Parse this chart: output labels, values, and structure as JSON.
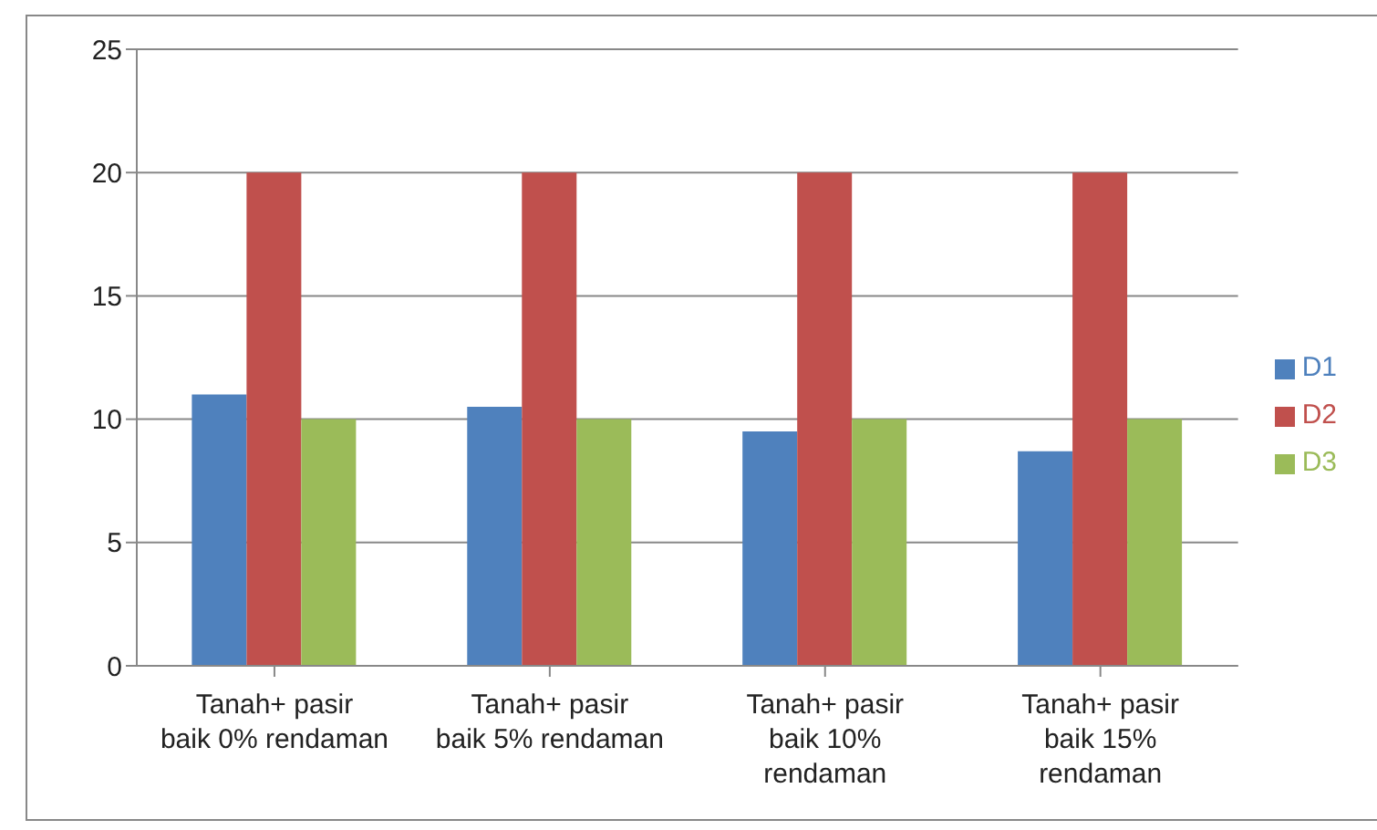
{
  "chart_data": {
    "type": "bar",
    "categories": [
      "Tanah+ pasir baik 0% rendaman",
      "Tanah+ pasir baik 5% rendaman",
      "Tanah+ pasir baik 10% rendaman",
      "Tanah+ pasir baik 15% rendaman"
    ],
    "series": [
      {
        "name": "D1",
        "color": "#4f81bd",
        "values": [
          11,
          10.5,
          9.5,
          8.7
        ]
      },
      {
        "name": "D2",
        "color": "#c0504d",
        "values": [
          20,
          20,
          20,
          20
        ]
      },
      {
        "name": "D3",
        "color": "#9bbb59",
        "values": [
          10,
          10,
          10,
          10
        ]
      }
    ],
    "ylim": [
      0,
      25
    ],
    "yticks": [
      0,
      5,
      10,
      15,
      20,
      25
    ],
    "grid": "y",
    "legend": "right"
  }
}
